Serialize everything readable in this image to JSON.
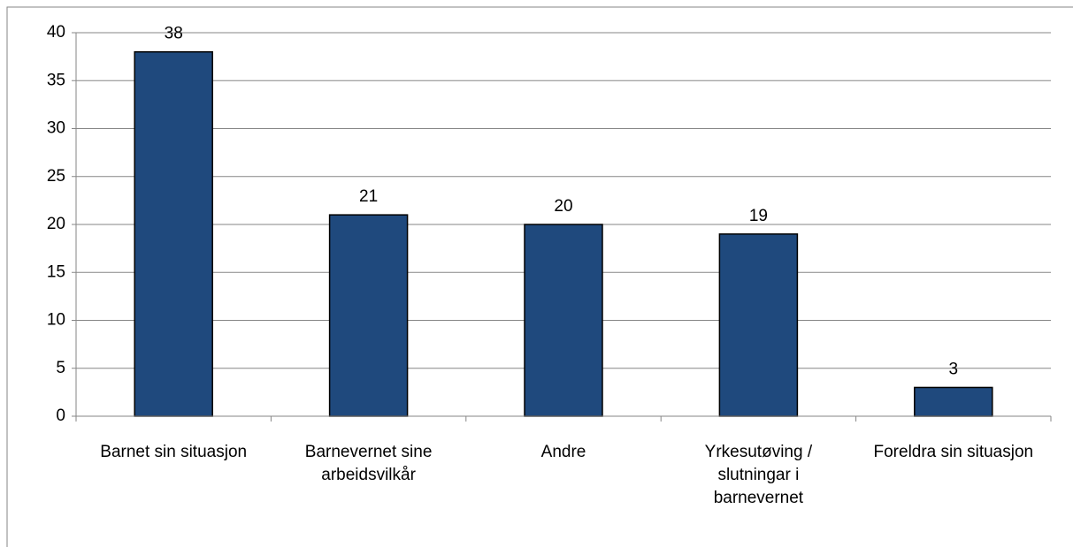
{
  "chart_data": {
    "type": "bar",
    "categories": [
      "Barnet sin situasjon",
      "Barnevernet sine arbeidsvilkår",
      "Andre",
      "Yrkesutøving / slutningar i barnevernet",
      "Foreldra sin situasjon"
    ],
    "values": [
      38,
      21,
      20,
      19,
      3
    ],
    "color": "#1f497d",
    "ylim": [
      0,
      40
    ],
    "yticks": [
      0,
      5,
      10,
      15,
      20,
      25,
      30,
      35,
      40
    ],
    "grid": true
  }
}
